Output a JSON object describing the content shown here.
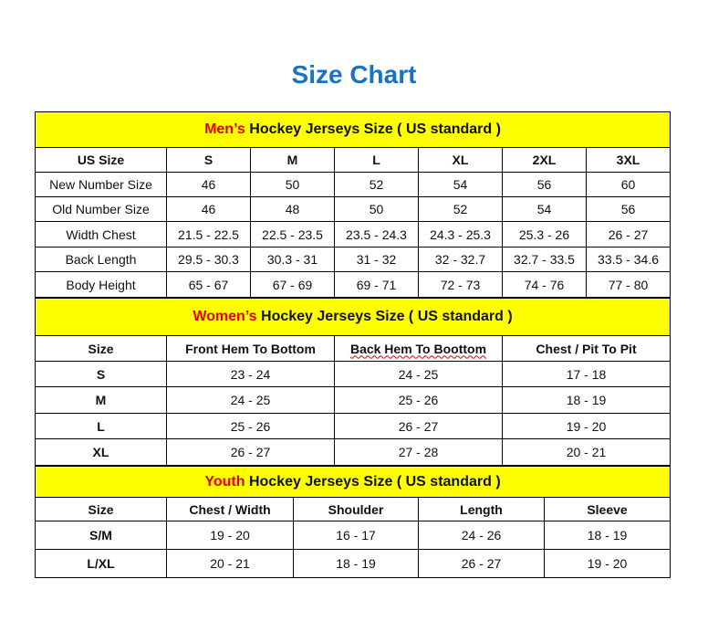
{
  "title": "Size Chart",
  "colors": {
    "title": "#1a73c0",
    "header_bg": "#ffff00",
    "highlight": "#e00000"
  },
  "sections": [
    {
      "highlight": "Men’s",
      "heading": " Hockey Jerseys Size ( US standard )",
      "columns": [
        "US Size",
        "S",
        "M",
        "L",
        "XL",
        "2XL",
        "3XL"
      ],
      "rows": [
        [
          "New Number Size",
          "46",
          "50",
          "52",
          "54",
          "56",
          "60"
        ],
        [
          "Old Number Size",
          "46",
          "48",
          "50",
          "52",
          "54",
          "56"
        ],
        [
          "Width Chest",
          "21.5 - 22.5",
          "22.5 - 23.5",
          "23.5 - 24.3",
          "24.3 - 25.3",
          "25.3 - 26",
          "26 - 27"
        ],
        [
          "Back Length",
          "29.5 - 30.3",
          "30.3 - 31",
          "31 - 32",
          "32 - 32.7",
          "32.7 - 33.5",
          "33.5 - 34.6"
        ],
        [
          "Body Height",
          "65 - 67",
          "67 - 69",
          "69 - 71",
          "72 - 73",
          "74 - 76",
          "77 - 80"
        ]
      ]
    },
    {
      "highlight": "Women’s",
      "heading": " Hockey Jerseys Size ( US standard )",
      "columns": [
        "Size",
        "Front Hem To Bottom",
        "Back Hem To Boottom",
        "Chest / Pit To Pit"
      ],
      "rows": [
        [
          "S",
          "23 - 24",
          "24 - 25",
          "17 - 18"
        ],
        [
          "M",
          "24 - 25",
          "25 - 26",
          "18 - 19"
        ],
        [
          "L",
          "25 - 26",
          "26 - 27",
          "19 - 20"
        ],
        [
          "XL",
          "26 - 27",
          "27 - 28",
          "20 - 21"
        ]
      ]
    },
    {
      "highlight": "Youth",
      "heading": " Hockey Jerseys Size ( US standard )",
      "columns": [
        "Size",
        "Chest / Width",
        "Shoulder",
        "Length",
        "Sleeve"
      ],
      "rows": [
        [
          "S/M",
          "19 - 20",
          "16 - 17",
          "24 - 26",
          "18 - 19"
        ],
        [
          "L/XL",
          "20 - 21",
          "18 - 19",
          "26 - 27",
          "19 - 20"
        ]
      ]
    }
  ]
}
